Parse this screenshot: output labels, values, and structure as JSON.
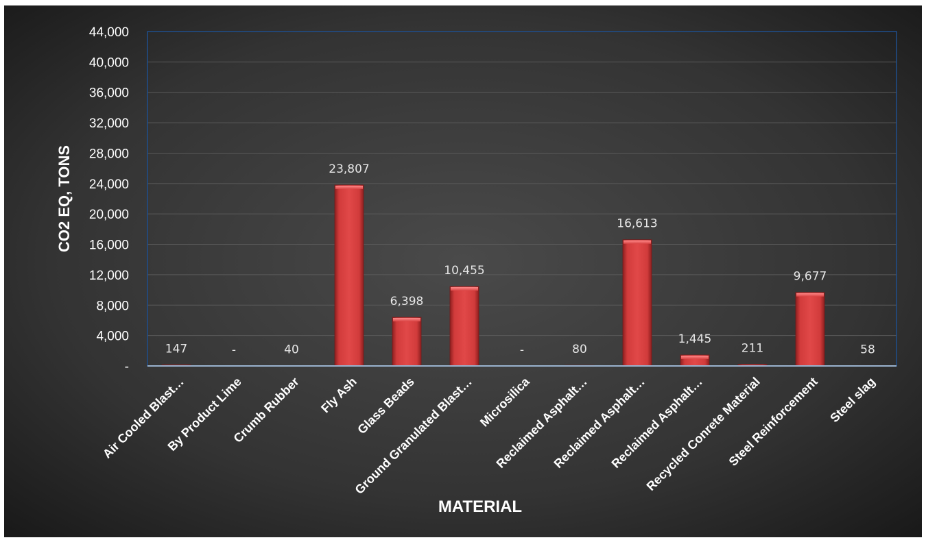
{
  "chart_data": {
    "type": "bar",
    "xlabel": "MATERIAL",
    "ylabel": "CO2 EQ, TONS",
    "ylim": [
      0,
      44000
    ],
    "ytick_step": 4000,
    "ytick_labels": [
      "-",
      "4,000",
      "8,000",
      "12,000",
      "16,000",
      "20,000",
      "24,000",
      "28,000",
      "32,000",
      "36,000",
      "40,000",
      "44,000"
    ],
    "grid": true,
    "legend": "none",
    "categories": [
      "Air Cooled Blast…",
      "By Product Lime",
      "Crumb Rubber",
      "Fly Ash",
      "Glass Beads",
      "Ground Granulated Blast…",
      "Microsilica",
      "Reclaimed Asphalt…",
      "Reclaimed Asphalt…",
      "Reclaimed Asphalt…",
      "Recycled Conrete Material",
      "Steel Reinforcement",
      "Steel slag"
    ],
    "values": [
      147,
      0,
      40,
      23807,
      6398,
      10455,
      0,
      80,
      16613,
      1445,
      211,
      9677,
      58
    ],
    "data_labels": [
      "147",
      "-",
      "40",
      "23,807",
      "6,398",
      "10,455",
      "-",
      "80",
      "16,613",
      "1,445",
      "211",
      "9,677",
      "58"
    ],
    "colors": {
      "background_center": "#4a4a4a",
      "background_edge": "#161616",
      "bar": "#d13b3b",
      "bar_highlight": "#f06a6a",
      "grid": "#5a5a5a",
      "plot_border": "#1f4e8c",
      "baseline": "#9ab3cf"
    }
  }
}
